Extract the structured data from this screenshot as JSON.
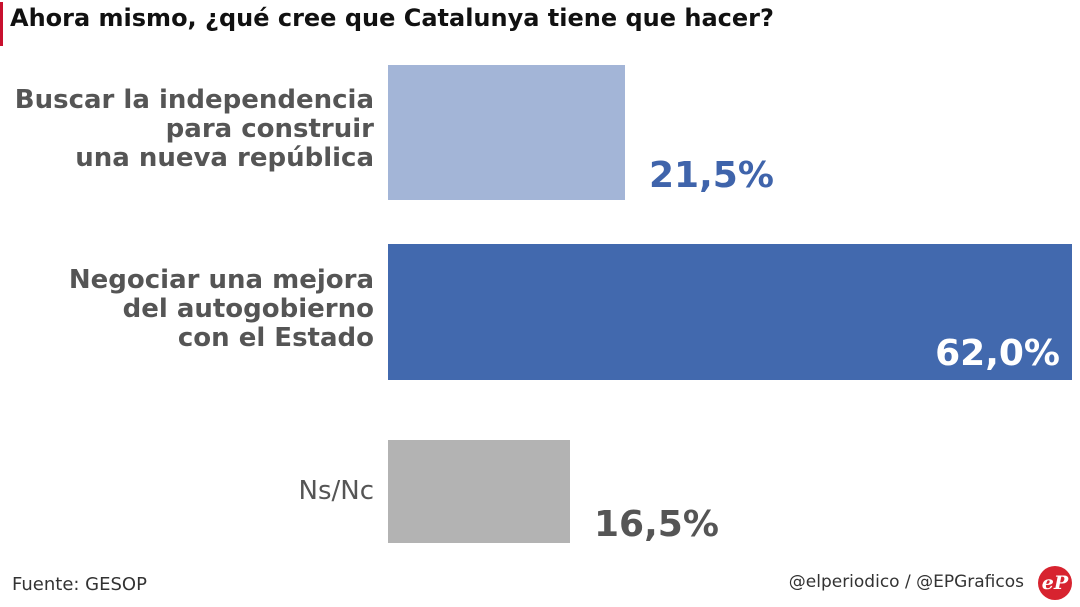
{
  "header": {
    "title": "Ahora mismo, ¿qué cree que Catalunya tiene que hacer?"
  },
  "chart_data": {
    "type": "bar",
    "orientation": "horizontal",
    "title": "Ahora mismo, ¿qué cree que Catalunya tiene que hacer?",
    "categories": [
      [
        "Buscar la independencia",
        "para construir",
        "una nueva república"
      ],
      [
        "Negociar una mejora",
        "del autogobierno",
        "con el Estado"
      ],
      [
        "Ns/Nc"
      ]
    ],
    "values": [
      21.5,
      62.0,
      16.5
    ],
    "value_labels": [
      "21,5%",
      "62,0%",
      "16,5%"
    ],
    "unit": "%",
    "xlim": [
      0,
      62
    ],
    "colors": [
      "#a3b5d7",
      "#4269ae",
      "#b3b3b3"
    ],
    "label_colors": [
      "#3f64ab",
      "#ffffff",
      "#555555"
    ],
    "grid": false,
    "legend": "none"
  },
  "footer": {
    "source": "Fuente: GESOP",
    "credit": "@elperiodico / @EPGraficos",
    "logo_text": "eP"
  }
}
